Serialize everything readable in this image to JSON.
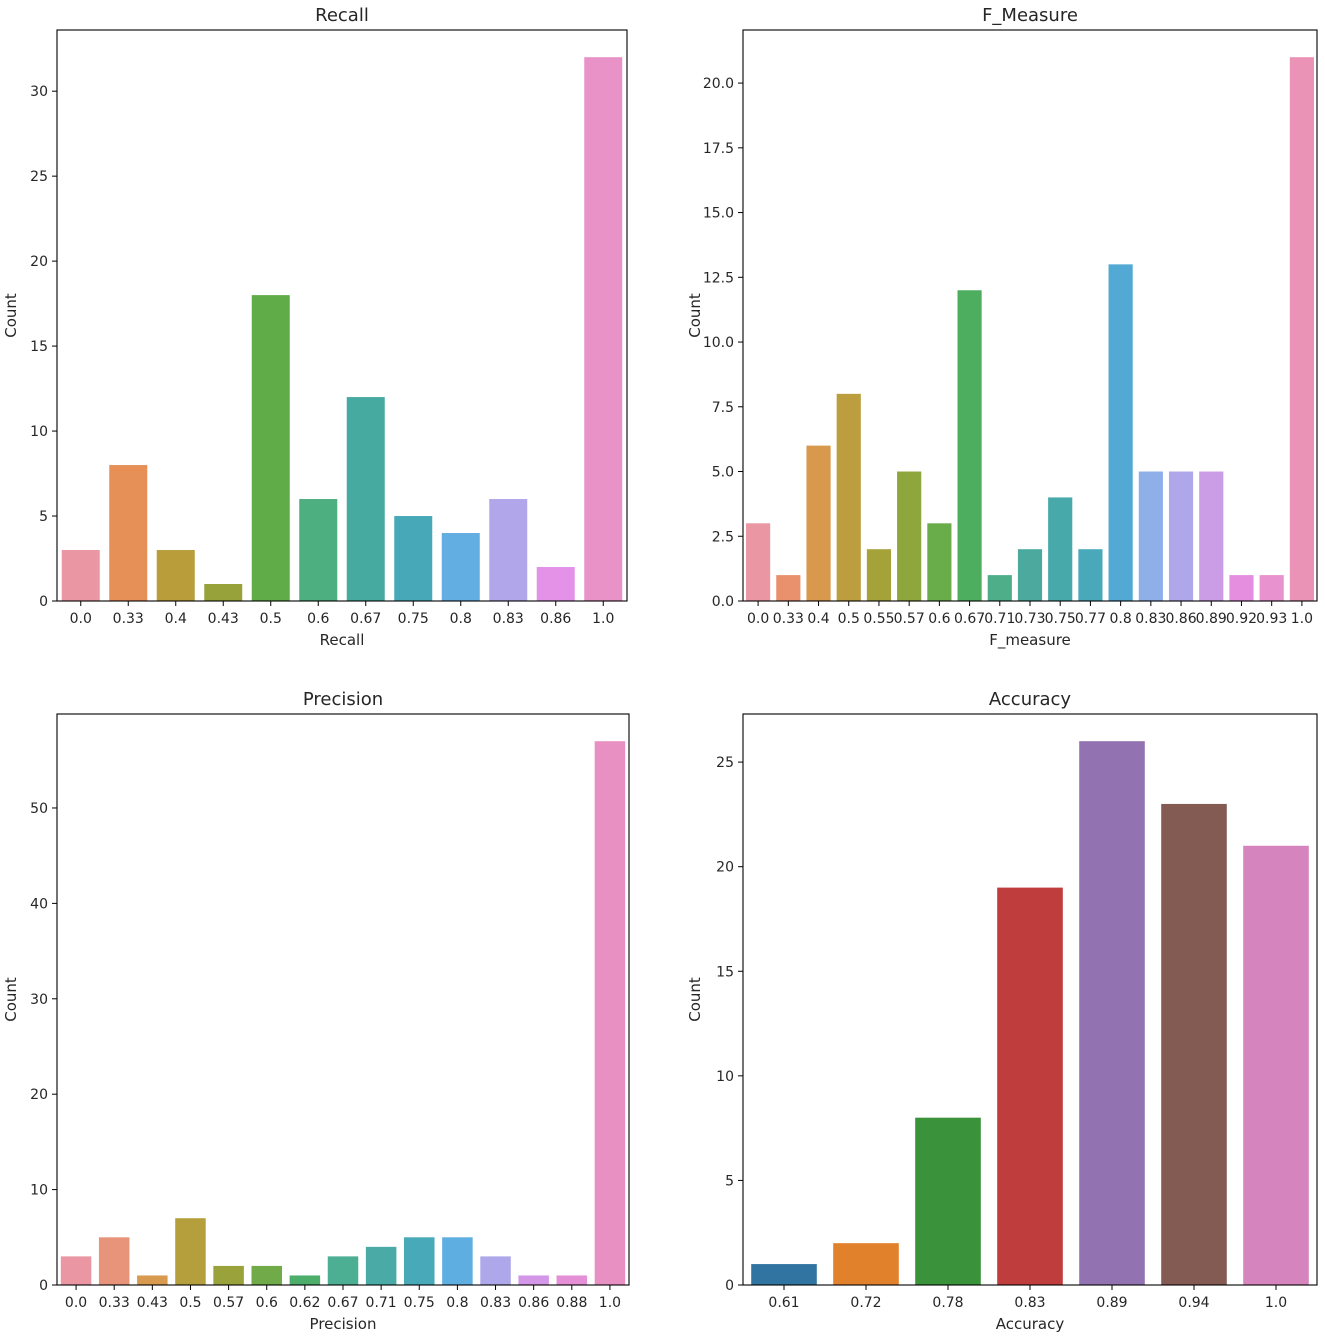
{
  "chart_data": [
    {
      "type": "bar",
      "title": "Recall",
      "xlabel": "Recall",
      "ylabel": "Count",
      "ylim": [
        0,
        33.6
      ],
      "yticks": [
        "0",
        "5",
        "10",
        "15",
        "20",
        "25",
        "30"
      ],
      "categories": [
        "0.0",
        "0.33",
        "0.4",
        "0.43",
        "0.5",
        "0.6",
        "0.67",
        "0.75",
        "0.8",
        "0.83",
        "0.86",
        "1.0"
      ],
      "values": [
        3,
        8,
        3,
        1,
        18,
        6,
        12,
        5,
        4,
        6,
        2,
        32
      ],
      "colors": [
        "#ea96a3",
        "#e69058",
        "#b89d3a",
        "#98a23a",
        "#5fac49",
        "#4dae7f",
        "#46aaa0",
        "#47a9b7",
        "#62aee2",
        "#b2a6ea",
        "#e392e8",
        "#e892c8"
      ]
    },
    {
      "type": "bar",
      "title": "F_Measure",
      "xlabel": "F_measure",
      "ylabel": "Count",
      "ylim": [
        0,
        22.05
      ],
      "yticks": [
        "0.0",
        "2.5",
        "5.0",
        "7.5",
        "10.0",
        "12.5",
        "15.0",
        "17.5",
        "20.0"
      ],
      "categories": [
        "0.0",
        "0.33",
        "0.4",
        "0.5",
        "0.55",
        "0.57",
        "0.6",
        "0.67",
        "0.71",
        "0.73",
        "0.75",
        "0.77",
        "0.8",
        "0.83",
        "0.86",
        "0.89",
        "0.92",
        "0.93",
        "1.0"
      ],
      "values": [
        3,
        1,
        6,
        8,
        2,
        5,
        3,
        12,
        1,
        2,
        4,
        2,
        13,
        5,
        5,
        5,
        1,
        1,
        21
      ],
      "colors": [
        "#ea96a3",
        "#e9916c",
        "#d8994d",
        "#bc9e3e",
        "#a5a23a",
        "#8ea63b",
        "#69ac4a",
        "#4dae60",
        "#4eae8a",
        "#4baa9d",
        "#47a9aa",
        "#49a9ba",
        "#52aad4",
        "#8eafe8",
        "#aea8ea",
        "#cb9de7",
        "#e58ee0",
        "#e892d0",
        "#ea93b6"
      ]
    },
    {
      "type": "bar",
      "title": "Precision",
      "xlabel": "Precision",
      "ylabel": "Count",
      "ylim": [
        0,
        59.85
      ],
      "yticks": [
        "0",
        "10",
        "20",
        "30",
        "40",
        "50"
      ],
      "categories": [
        "0.0",
        "0.33",
        "0.43",
        "0.5",
        "0.57",
        "0.6",
        "0.62",
        "0.67",
        "0.71",
        "0.75",
        "0.8",
        "0.83",
        "0.86",
        "0.88",
        "1.0"
      ],
      "values": [
        3,
        5,
        1,
        7,
        2,
        2,
        1,
        3,
        4,
        5,
        5,
        3,
        1,
        1,
        57
      ],
      "colors": [
        "#ea96a3",
        "#e8947a",
        "#d79a4e",
        "#b59f3c",
        "#9aa33b",
        "#71ab49",
        "#4dae6b",
        "#4cae93",
        "#49aaa6",
        "#48a9b8",
        "#5faee2",
        "#aea8ea",
        "#d497e8",
        "#e58fd6",
        "#e890c2"
      ]
    },
    {
      "type": "bar",
      "title": "Accuracy",
      "xlabel": "Accuracy",
      "ylabel": "Count",
      "ylim": [
        0,
        27.3
      ],
      "yticks": [
        "0",
        "5",
        "10",
        "15",
        "20",
        "25"
      ],
      "categories": [
        "0.61",
        "0.72",
        "0.78",
        "0.83",
        "0.89",
        "0.94",
        "1.0"
      ],
      "values": [
        1,
        2,
        8,
        19,
        26,
        23,
        21
      ],
      "colors": [
        "#3274a1",
        "#e1812c",
        "#3a923a",
        "#c03d3e",
        "#9372b2",
        "#845b53",
        "#d684bd"
      ]
    }
  ]
}
